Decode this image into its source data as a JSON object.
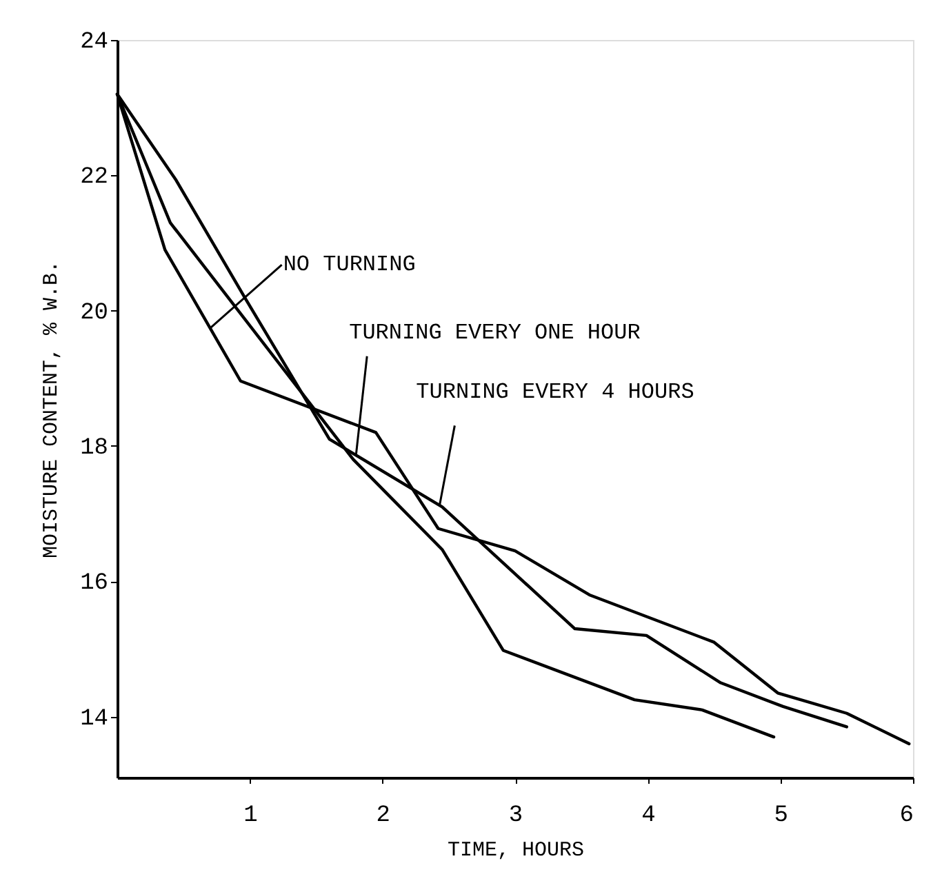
{
  "chart_data": {
    "type": "line",
    "xlabel": "TIME, HOURS",
    "ylabel": "MOISTURE CONTENT, % W.B.",
    "xlim": [
      0,
      6
    ],
    "xticks": [
      1,
      2,
      3,
      4,
      5,
      6
    ],
    "ylim": [
      13.1,
      24
    ],
    "yticks": [
      14,
      16,
      18,
      20,
      22,
      24
    ],
    "grid": false,
    "legend": false,
    "marker": "none",
    "line_style": "solid",
    "series": [
      {
        "color": "#000000",
        "x": [
          0,
          0.36,
          0.93,
          1.95,
          2.42,
          3.0,
          3.56,
          4.5,
          4.98,
          5.5,
          5.97
        ],
        "values": [
          23.2,
          20.9,
          18.96,
          18.2,
          16.78,
          16.45,
          15.8,
          15.1,
          14.35,
          14.05,
          13.6
        ]
      },
      {
        "color": "#000000",
        "x": [
          0,
          0.4,
          1.78,
          2.45,
          2.91,
          3.9,
          4.41,
          4.95
        ],
        "values": [
          23.2,
          21.3,
          17.8,
          16.47,
          14.98,
          14.25,
          14.1,
          13.7
        ]
      },
      {
        "color": "#000000",
        "x": [
          0,
          0.44,
          0.96,
          1.6,
          2.45,
          3.45,
          3.99,
          4.55,
          5.02,
          5.5
        ],
        "values": [
          23.2,
          21.94,
          20.2,
          18.1,
          17.1,
          15.3,
          15.2,
          14.5,
          14.15,
          13.85
        ]
      }
    ],
    "annotations": [
      {
        "text": "NO TURNING",
        "x": 0.7,
        "y": 19.74
      },
      {
        "text": "TURNING EVERY ONE HOUR",
        "x": 1.8,
        "y": 17.86
      },
      {
        "text": "TURNING EVERY 4 HOURS",
        "x": 2.43,
        "y": 17.12
      }
    ]
  }
}
